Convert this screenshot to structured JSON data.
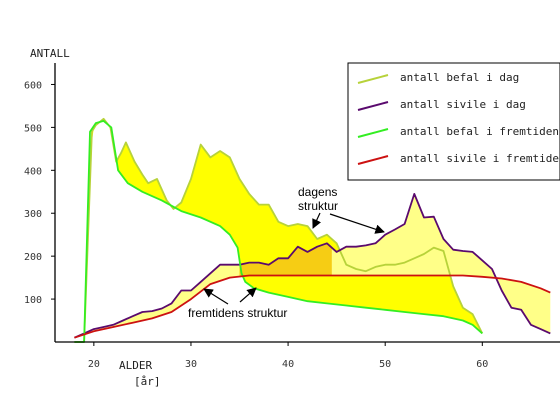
{
  "chart_data": {
    "type": "line",
    "ylabel": "ANTALL",
    "xlabel_line1": "ALDER",
    "xlabel_line2": "[år]",
    "xlim": [
      16,
      68
    ],
    "ylim": [
      0,
      650
    ],
    "x_ticks": [
      20,
      30,
      40,
      50,
      60
    ],
    "y_ticks": [
      100,
      200,
      300,
      400,
      500,
      600
    ],
    "series": [
      {
        "name": "antall befal i dag",
        "color": "#b7d23a",
        "points": [
          [
            18,
            0
          ],
          [
            19,
            0
          ],
          [
            19.8,
            490
          ],
          [
            20.2,
            505
          ],
          [
            21,
            520
          ],
          [
            21.7,
            500
          ],
          [
            22.3,
            420
          ],
          [
            22.8,
            440
          ],
          [
            23.3,
            465
          ],
          [
            24.2,
            420
          ],
          [
            25,
            390
          ],
          [
            25.6,
            370
          ],
          [
            26.5,
            380
          ],
          [
            27.5,
            330
          ],
          [
            28.2,
            310
          ],
          [
            29,
            325
          ],
          [
            30,
            380
          ],
          [
            31,
            460
          ],
          [
            32,
            430
          ],
          [
            33,
            445
          ],
          [
            34,
            430
          ],
          [
            35,
            380
          ],
          [
            36,
            345
          ],
          [
            37,
            320
          ],
          [
            38,
            320
          ],
          [
            39,
            280
          ],
          [
            40,
            270
          ],
          [
            41,
            275
          ],
          [
            42,
            270
          ],
          [
            43,
            240
          ],
          [
            44,
            250
          ],
          [
            45,
            230
          ],
          [
            46,
            180
          ],
          [
            47,
            170
          ],
          [
            48,
            165
          ],
          [
            49,
            175
          ],
          [
            50,
            180
          ],
          [
            51,
            180
          ],
          [
            52,
            185
          ],
          [
            53,
            195
          ],
          [
            54,
            205
          ],
          [
            55,
            220
          ],
          [
            56,
            212
          ],
          [
            57,
            130
          ],
          [
            58,
            80
          ],
          [
            59,
            65
          ],
          [
            60,
            20
          ]
        ]
      },
      {
        "name": "antall sivile i dag",
        "color": "#5a0a6e",
        "points": [
          [
            18,
            10
          ],
          [
            19,
            20
          ],
          [
            20,
            30
          ],
          [
            21,
            35
          ],
          [
            22,
            40
          ],
          [
            23,
            50
          ],
          [
            24,
            60
          ],
          [
            25,
            70
          ],
          [
            26,
            72
          ],
          [
            27,
            78
          ],
          [
            28,
            90
          ],
          [
            29,
            120
          ],
          [
            30,
            120
          ],
          [
            31,
            140
          ],
          [
            32,
            160
          ],
          [
            33,
            180
          ],
          [
            34,
            180
          ],
          [
            35,
            180
          ],
          [
            36,
            185
          ],
          [
            37,
            185
          ],
          [
            38,
            180
          ],
          [
            39,
            195
          ],
          [
            40,
            195
          ],
          [
            41,
            222
          ],
          [
            42,
            210
          ],
          [
            43,
            222
          ],
          [
            44,
            230
          ],
          [
            45,
            210
          ],
          [
            46,
            222
          ],
          [
            47,
            222
          ],
          [
            48,
            225
          ],
          [
            49,
            230
          ],
          [
            50,
            250
          ],
          [
            51,
            262
          ],
          [
            52,
            275
          ],
          [
            53,
            345
          ],
          [
            54,
            290
          ],
          [
            55,
            292
          ],
          [
            56,
            240
          ],
          [
            57,
            215
          ],
          [
            58,
            212
          ],
          [
            59,
            210
          ],
          [
            60,
            190
          ],
          [
            61,
            170
          ],
          [
            62,
            120
          ],
          [
            63,
            80
          ],
          [
            64,
            75
          ],
          [
            65,
            40
          ],
          [
            66,
            30
          ],
          [
            67,
            20
          ]
        ]
      },
      {
        "name": "antall befal i fremtiden",
        "color": "#33ee22",
        "points": [
          [
            18,
            0
          ],
          [
            19,
            0
          ],
          [
            19.6,
            490
          ],
          [
            20.2,
            510
          ],
          [
            21,
            515
          ],
          [
            21.8,
            500
          ],
          [
            22.5,
            400
          ],
          [
            23.5,
            370
          ],
          [
            25,
            350
          ],
          [
            27,
            330
          ],
          [
            29,
            305
          ],
          [
            31,
            290
          ],
          [
            33,
            270
          ],
          [
            34,
            250
          ],
          [
            34.8,
            220
          ],
          [
            35.2,
            160
          ],
          [
            35.6,
            140
          ],
          [
            36.5,
            125
          ],
          [
            38,
            115
          ],
          [
            40,
            105
          ],
          [
            42,
            95
          ],
          [
            44,
            90
          ],
          [
            46,
            85
          ],
          [
            48,
            80
          ],
          [
            50,
            75
          ],
          [
            52,
            70
          ],
          [
            54,
            65
          ],
          [
            56,
            60
          ],
          [
            58,
            50
          ],
          [
            59,
            40
          ],
          [
            60,
            20
          ]
        ]
      },
      {
        "name": "antall sivile i fremtiden",
        "color": "#cc1111",
        "points": [
          [
            18,
            10
          ],
          [
            20,
            25
          ],
          [
            22,
            35
          ],
          [
            24,
            45
          ],
          [
            26,
            55
          ],
          [
            28,
            70
          ],
          [
            30,
            100
          ],
          [
            32,
            135
          ],
          [
            34,
            150
          ],
          [
            36,
            155
          ],
          [
            38,
            155
          ],
          [
            40,
            155
          ],
          [
            42,
            155
          ],
          [
            44,
            155
          ],
          [
            46,
            155
          ],
          [
            48,
            155
          ],
          [
            50,
            155
          ],
          [
            52,
            155
          ],
          [
            54,
            155
          ],
          [
            56,
            155
          ],
          [
            58,
            155
          ],
          [
            60,
            152
          ],
          [
            62,
            148
          ],
          [
            64,
            140
          ],
          [
            66,
            125
          ],
          [
            67,
            115
          ]
        ]
      }
    ],
    "annotations": {
      "dagens_line1": "dagens",
      "dagens_line2": "struktur",
      "fremtidens": "fremtidens struktur"
    },
    "fill_color_strong": "#ffff00",
    "fill_color_light": "#ffff88",
    "fill_color_overlap": "#f5c400",
    "legend_position": "top-right"
  }
}
